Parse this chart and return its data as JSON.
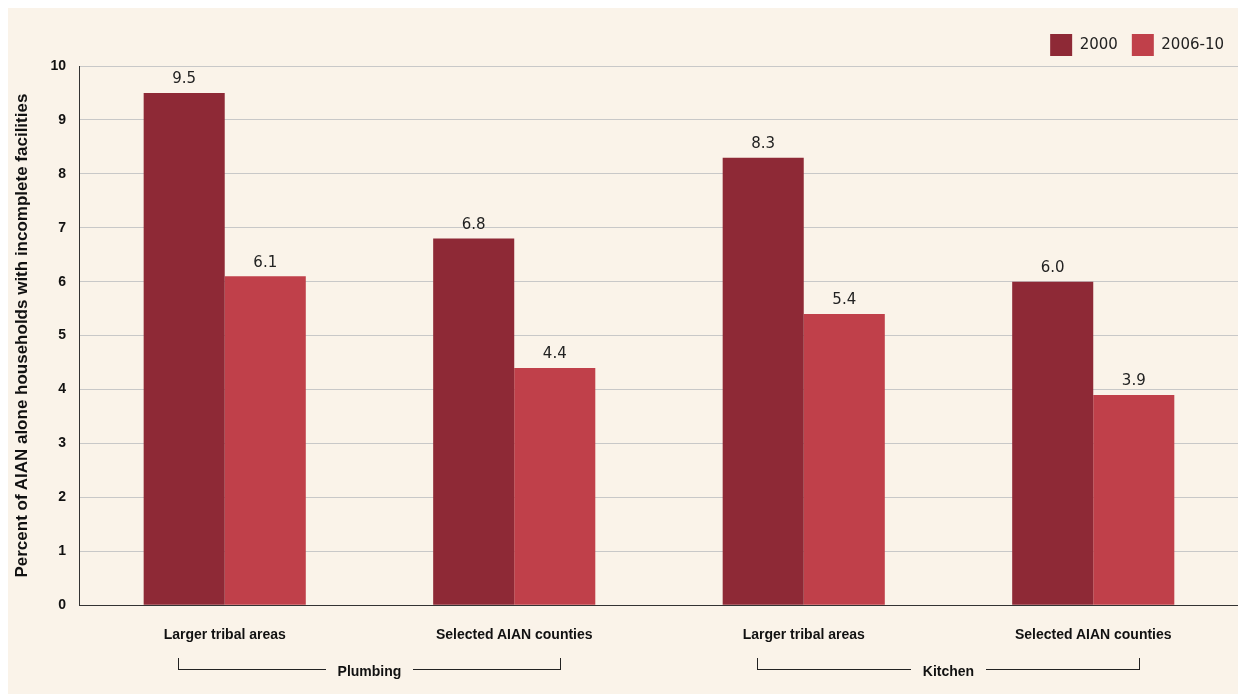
{
  "chart_data": {
    "type": "bar",
    "ylabel": "Percent of AIAN alone households with incomplete facilities",
    "categories": [
      "Larger tribal areas",
      "Selected AIAN counties",
      "Larger tribal areas",
      "Selected AIAN counties"
    ],
    "series": [
      {
        "name": "2000",
        "color": "#8e2936",
        "values": [
          9.5,
          6.8,
          8.3,
          6.0
        ],
        "value_labels": [
          "9.5",
          "6.8",
          "8.3",
          "6.0"
        ]
      },
      {
        "name": "2006-10",
        "color": "#c0404a",
        "values": [
          6.1,
          4.4,
          5.4,
          3.9
        ],
        "value_labels": [
          "6.1",
          "4.4",
          "5.4",
          "3.9"
        ]
      }
    ],
    "ylim": [
      0,
      10
    ],
    "yticks": [
      0,
      1,
      2,
      3,
      4,
      5,
      6,
      7,
      8,
      9,
      10
    ],
    "grid": "y",
    "legend": "top right",
    "annotations": [
      "Plumbing",
      "Kitchen"
    ]
  }
}
